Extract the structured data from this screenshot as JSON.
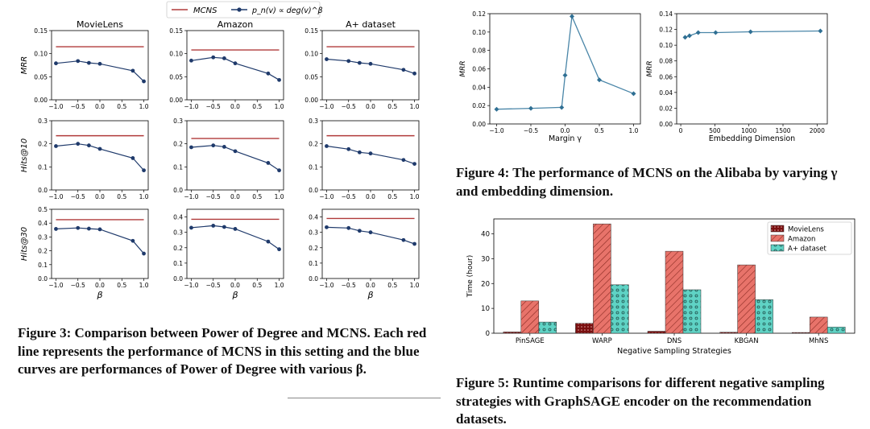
{
  "colors": {
    "mcns": "#b03a3a",
    "power": "#1f3a6b",
    "line4": "#4a86a8",
    "amazon": "#e8736a",
    "aplus": "#5fd3c5",
    "movielens": "#7a1010"
  },
  "fig3": {
    "legend": {
      "mcns": "MCNS",
      "power": "p_n(v) ∝ deg(v)^β"
    },
    "datasets": [
      "MovieLens",
      "Amazon",
      "A+ dataset"
    ],
    "xlabel": "β",
    "xticks": [
      "−1.0",
      "−0.5",
      "0.0",
      "0.5",
      "1.0"
    ],
    "rows": [
      {
        "ylabel": "MRR",
        "ylim": [
          0,
          0.15
        ],
        "yticks": [
          "0.00",
          "0.05",
          "0.10",
          "0.15"
        ]
      },
      {
        "ylabel": "Hits@10",
        "ylim": [
          0,
          0.3
        ],
        "yticks": [
          "0.0",
          "0.1",
          "0.2",
          "0.3"
        ]
      },
      {
        "ylabel": "Hits@30",
        "ylim": [
          0,
          0.5
        ],
        "yticks": [
          "0.0",
          "0.1",
          "0.2",
          "0.3",
          "0.4",
          "0.5"
        ],
        "yticks_alt": [
          "0.0",
          "0.1",
          "0.2",
          "0.3",
          "0.4"
        ]
      }
    ],
    "caption": "Figure 3: Comparison between Power of Degree and MCNS. Each red line represents the performance of MCNS in this setting and the blue curves are performances of Power of Degree with various β."
  },
  "fig4": {
    "caption": "Figure 4: The performance of MCNS on the Alibaba by varying γ and embedding dimension."
  },
  "fig5": {
    "caption": "Figure 5: Runtime comparisons for different negative sampling strategies with GraphSAGE encoder on the recommendation datasets."
  },
  "chart_data": [
    {
      "id": "f3-mrr-movielens",
      "type": "line",
      "title": "MovieLens",
      "xlabel": "",
      "ylabel": "MRR",
      "xlim": [
        -1.1,
        1.1
      ],
      "ylim": [
        0,
        0.15
      ],
      "series": [
        {
          "name": "MCNS",
          "x": [
            -1.0,
            1.0
          ],
          "values": [
            0.115,
            0.115
          ]
        },
        {
          "name": "Power of Degree",
          "x": [
            -1.0,
            -0.5,
            -0.25,
            0.0,
            0.75,
            1.0
          ],
          "values": [
            0.079,
            0.084,
            0.08,
            0.078,
            0.063,
            0.04
          ]
        }
      ]
    },
    {
      "id": "f3-mrr-amazon",
      "type": "line",
      "title": "Amazon",
      "xlabel": "",
      "ylabel": "",
      "xlim": [
        -1.1,
        1.1
      ],
      "ylim": [
        0,
        0.15
      ],
      "series": [
        {
          "name": "MCNS",
          "x": [
            -1.0,
            1.0
          ],
          "values": [
            0.108,
            0.108
          ]
        },
        {
          "name": "Power of Degree",
          "x": [
            -1.0,
            -0.5,
            -0.25,
            0.0,
            0.75,
            1.0
          ],
          "values": [
            0.085,
            0.092,
            0.09,
            0.079,
            0.057,
            0.043
          ]
        }
      ]
    },
    {
      "id": "f3-mrr-aplus",
      "type": "line",
      "title": "A+ dataset",
      "xlabel": "",
      "ylabel": "",
      "xlim": [
        -1.1,
        1.1
      ],
      "ylim": [
        0,
        0.15
      ],
      "series": [
        {
          "name": "MCNS",
          "x": [
            -1.0,
            1.0
          ],
          "values": [
            0.115,
            0.115
          ]
        },
        {
          "name": "Power of Degree",
          "x": [
            -1.0,
            -0.5,
            -0.25,
            0.0,
            0.75,
            1.0
          ],
          "values": [
            0.088,
            0.084,
            0.08,
            0.078,
            0.065,
            0.057
          ]
        }
      ]
    },
    {
      "id": "f3-h10-movielens",
      "type": "line",
      "title": "",
      "xlabel": "",
      "ylabel": "Hits@10",
      "xlim": [
        -1.1,
        1.1
      ],
      "ylim": [
        0,
        0.3
      ],
      "series": [
        {
          "name": "MCNS",
          "x": [
            -1.0,
            1.0
          ],
          "values": [
            0.235,
            0.235
          ]
        },
        {
          "name": "Power of Degree",
          "x": [
            -1.0,
            -0.5,
            -0.25,
            0.0,
            0.75,
            1.0
          ],
          "values": [
            0.19,
            0.2,
            0.193,
            0.178,
            0.138,
            0.085
          ]
        }
      ]
    },
    {
      "id": "f3-h10-amazon",
      "type": "line",
      "title": "",
      "xlabel": "",
      "ylabel": "",
      "xlim": [
        -1.1,
        1.1
      ],
      "ylim": [
        0,
        0.3
      ],
      "series": [
        {
          "name": "MCNS",
          "x": [
            -1.0,
            1.0
          ],
          "values": [
            0.223,
            0.223
          ]
        },
        {
          "name": "Power of Degree",
          "x": [
            -1.0,
            -0.5,
            -0.25,
            0.0,
            0.75,
            1.0
          ],
          "values": [
            0.185,
            0.193,
            0.187,
            0.168,
            0.117,
            0.085
          ]
        }
      ]
    },
    {
      "id": "f3-h10-aplus",
      "type": "line",
      "title": "",
      "xlabel": "",
      "ylabel": "",
      "xlim": [
        -1.1,
        1.1
      ],
      "ylim": [
        0,
        0.3
      ],
      "series": [
        {
          "name": "MCNS",
          "x": [
            -1.0,
            1.0
          ],
          "values": [
            0.235,
            0.235
          ]
        },
        {
          "name": "Power of Degree",
          "x": [
            -1.0,
            -0.5,
            -0.25,
            0.0,
            0.75,
            1.0
          ],
          "values": [
            0.19,
            0.177,
            0.163,
            0.158,
            0.13,
            0.113
          ]
        }
      ]
    },
    {
      "id": "f3-h30-movielens",
      "type": "line",
      "title": "",
      "xlabel": "β",
      "ylabel": "Hits@30",
      "xlim": [
        -1.1,
        1.1
      ],
      "ylim": [
        0,
        0.5
      ],
      "series": [
        {
          "name": "MCNS",
          "x": [
            -1.0,
            1.0
          ],
          "values": [
            0.425,
            0.425
          ]
        },
        {
          "name": "Power of Degree",
          "x": [
            -1.0,
            -0.5,
            -0.25,
            0.0,
            0.75,
            1.0
          ],
          "values": [
            0.358,
            0.365,
            0.36,
            0.355,
            0.272,
            0.18
          ]
        }
      ]
    },
    {
      "id": "f3-h30-amazon",
      "type": "line",
      "title": "",
      "xlabel": "β",
      "ylabel": "",
      "xlim": [
        -1.1,
        1.1
      ],
      "ylim": [
        0,
        0.45
      ],
      "series": [
        {
          "name": "MCNS",
          "x": [
            -1.0,
            1.0
          ],
          "values": [
            0.385,
            0.385
          ]
        },
        {
          "name": "Power of Degree",
          "x": [
            -1.0,
            -0.5,
            -0.25,
            0.0,
            0.75,
            1.0
          ],
          "values": [
            0.33,
            0.343,
            0.335,
            0.322,
            0.24,
            0.19
          ]
        }
      ]
    },
    {
      "id": "f3-h30-aplus",
      "type": "line",
      "title": "",
      "xlabel": "β",
      "ylabel": "",
      "xlim": [
        -1.1,
        1.1
      ],
      "ylim": [
        0,
        0.45
      ],
      "series": [
        {
          "name": "MCNS",
          "x": [
            -1.0,
            1.0
          ],
          "values": [
            0.39,
            0.39
          ]
        },
        {
          "name": "Power of Degree",
          "x": [
            -1.0,
            -0.5,
            -0.25,
            0.0,
            0.75,
            1.0
          ],
          "values": [
            0.333,
            0.328,
            0.31,
            0.3,
            0.25,
            0.225
          ]
        }
      ]
    },
    {
      "id": "f4-margin",
      "type": "line",
      "title": "",
      "xlabel": "Margin γ",
      "ylabel": "MRR",
      "xlim": [
        -1.1,
        1.1
      ],
      "ylim": [
        0,
        0.12
      ],
      "xticks": [
        -1.0,
        -0.5,
        0.0,
        0.5,
        1.0
      ],
      "xtick_labels": [
        "−1.0",
        "−0.5",
        "0.0",
        "0.5",
        "1.0"
      ],
      "yticks": [
        0.0,
        0.02,
        0.04,
        0.06,
        0.08,
        0.1,
        0.12
      ],
      "ytick_labels": [
        "0.00",
        "0.02",
        "0.04",
        "0.06",
        "0.08",
        "0.10",
        "0.12"
      ],
      "series": [
        {
          "name": "MCNS",
          "x": [
            -1.0,
            -0.5,
            -0.05,
            0.0,
            0.1,
            0.5,
            1.0
          ],
          "values": [
            0.016,
            0.017,
            0.018,
            0.053,
            0.117,
            0.048,
            0.033
          ]
        }
      ]
    },
    {
      "id": "f4-embedding",
      "type": "line",
      "title": "",
      "xlabel": "Embedding Dimension",
      "ylabel": "MRR",
      "xlim": [
        -60,
        2150
      ],
      "ylim": [
        0,
        0.14
      ],
      "xticks": [
        0,
        500,
        1000,
        1500,
        2000
      ],
      "xtick_labels": [
        "0",
        "500",
        "1000",
        "1500",
        "2000"
      ],
      "yticks": [
        0.0,
        0.02,
        0.04,
        0.06,
        0.08,
        0.1,
        0.12,
        0.14
      ],
      "ytick_labels": [
        "0.00",
        "0.02",
        "0.04",
        "0.06",
        "0.08",
        "0.10",
        "0.12",
        "0.14"
      ],
      "series": [
        {
          "name": "MCNS",
          "x": [
            64,
            128,
            256,
            512,
            1024,
            2048
          ],
          "values": [
            0.11,
            0.112,
            0.116,
            0.116,
            0.117,
            0.118
          ]
        }
      ]
    },
    {
      "id": "f5-runtime",
      "type": "bar",
      "title": "",
      "xlabel": "Negative Sampling Strategies",
      "ylabel": "Time (hour)",
      "ylim": [
        0,
        46
      ],
      "yticks": [
        0,
        10,
        20,
        30,
        40
      ],
      "ytick_labels": [
        "0",
        "10",
        "20",
        "30",
        "40"
      ],
      "categories": [
        "PinSAGE",
        "WARP",
        "DNS",
        "KBGAN",
        "MhNS"
      ],
      "series": [
        {
          "name": "MovieLens",
          "values": [
            0.5,
            4.0,
            0.8,
            0.4,
            0.3
          ]
        },
        {
          "name": "Amazon",
          "values": [
            13.0,
            44.0,
            33.0,
            27.5,
            6.5
          ]
        },
        {
          "name": "A+ dataset",
          "values": [
            4.5,
            19.5,
            17.5,
            13.5,
            2.5
          ]
        }
      ]
    }
  ]
}
